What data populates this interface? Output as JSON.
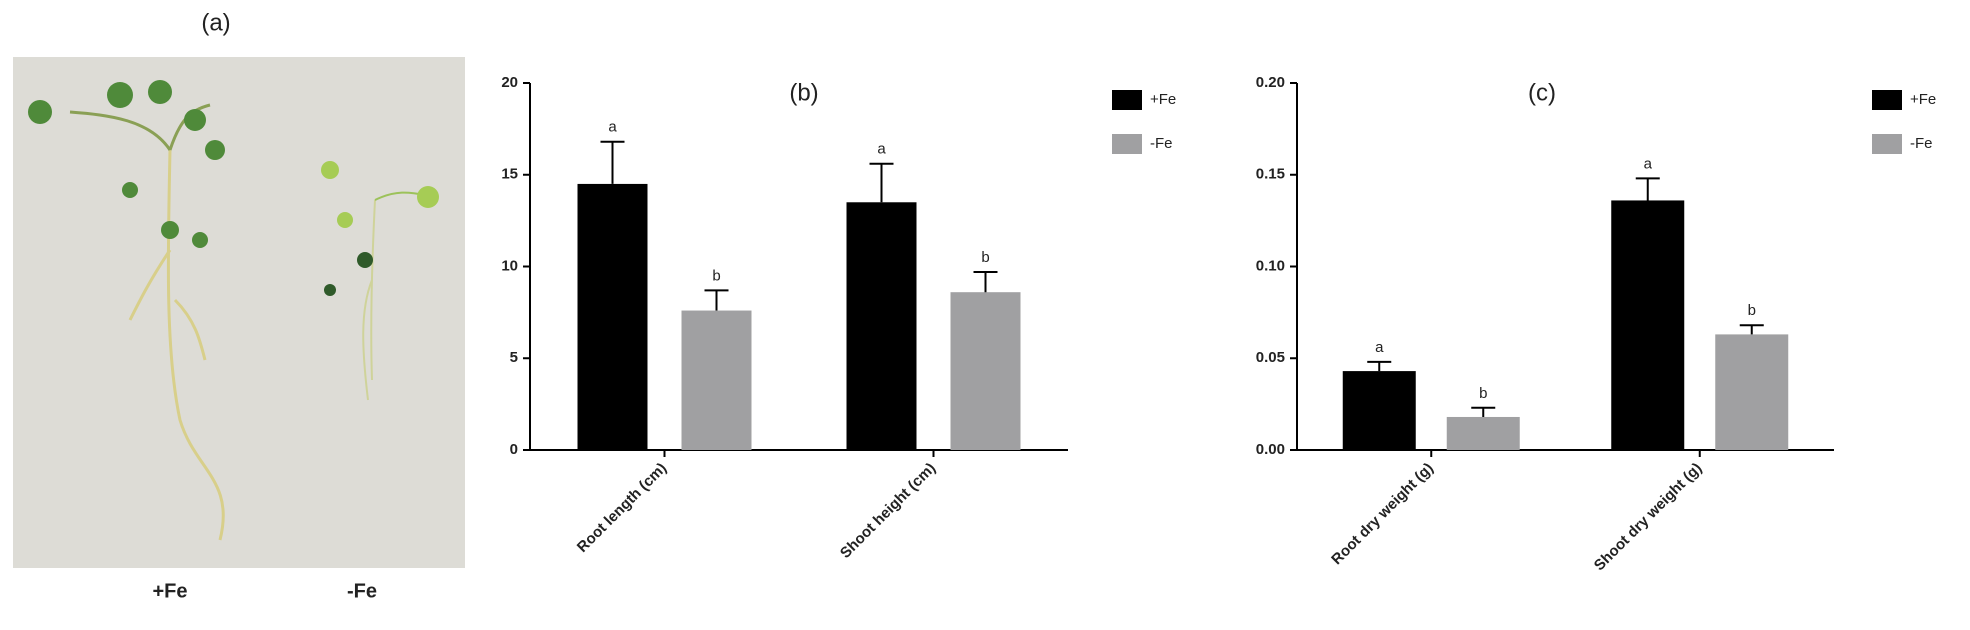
{
  "photo": {
    "label": "(a)",
    "captions": [
      "+Fe",
      "-Fe"
    ]
  },
  "chart_data": [
    {
      "type": "bar",
      "title": "(b)",
      "categories": [
        "Root length (cm)",
        "Shoot height (cm)"
      ],
      "series": [
        {
          "name": "+Fe",
          "color": "#000000",
          "values": [
            14.5,
            13.5
          ],
          "errors": [
            2.3,
            2.1
          ],
          "letters": [
            "a",
            "a"
          ]
        },
        {
          "name": "-Fe",
          "color": "#a0a0a2",
          "values": [
            7.6,
            8.6
          ],
          "errors": [
            1.1,
            1.1
          ],
          "letters": [
            "b",
            "b"
          ]
        }
      ],
      "ylim": [
        0,
        20
      ],
      "yticks": [
        0,
        5,
        10,
        15,
        20
      ],
      "legend": "upper right"
    },
    {
      "type": "bar",
      "title": "(c)",
      "categories": [
        "Root dry weight (g)",
        "Shoot dry weight (g)"
      ],
      "series": [
        {
          "name": "+Fe",
          "color": "#000000",
          "values": [
            0.043,
            0.136
          ],
          "errors": [
            0.005,
            0.012
          ],
          "letters": [
            "a",
            "a"
          ]
        },
        {
          "name": "-Fe",
          "color": "#a0a0a2",
          "values": [
            0.018,
            0.063
          ],
          "errors": [
            0.005,
            0.005
          ],
          "letters": [
            "b",
            "b"
          ]
        }
      ],
      "ylim": [
        0,
        0.2
      ],
      "yticks": [
        {
          "value": 0,
          "label": "0.00"
        },
        {
          "value": 0.05,
          "label": "0.05"
        },
        {
          "value": 0.1,
          "label": "0.10"
        },
        {
          "value": 0.15,
          "label": "0.15"
        },
        {
          "value": 0.2,
          "label": "0.20"
        }
      ],
      "legend": "upper right"
    }
  ]
}
